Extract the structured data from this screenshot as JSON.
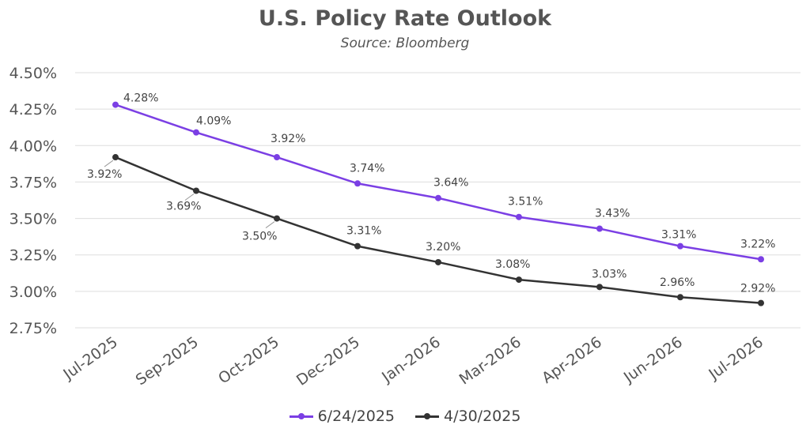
{
  "chart_data": {
    "type": "line",
    "title": "U.S. Policy Rate Outlook",
    "subtitle": "Source: Bloomberg",
    "categories": [
      "Jul-2025",
      "Sep-2025",
      "Oct-2025",
      "Dec-2025",
      "Jan-2026",
      "Mar-2026",
      "Apr-2026",
      "Jun-2026",
      "Jul-2026"
    ],
    "series": [
      {
        "name": "6/24/2025",
        "color": "#7b3fe4",
        "values": [
          4.28,
          4.09,
          3.92,
          3.74,
          3.64,
          3.51,
          3.43,
          3.31,
          3.22
        ],
        "labels": [
          "4.28%",
          "4.09%",
          "3.92%",
          "3.74%",
          "3.64%",
          "3.51%",
          "3.43%",
          "3.31%",
          "3.22%"
        ]
      },
      {
        "name": "4/30/2025",
        "color": "#333333",
        "values": [
          3.92,
          3.69,
          3.5,
          3.31,
          3.2,
          3.08,
          3.03,
          2.96,
          2.92
        ],
        "labels": [
          "3.92%",
          "3.69%",
          "3.50%",
          "3.31%",
          "3.20%",
          "3.08%",
          "3.03%",
          "2.96%",
          "2.92%"
        ]
      }
    ],
    "ylim": [
      2.75,
      4.5
    ],
    "yticks": [
      "2.75%",
      "3.00%",
      "3.25%",
      "3.50%",
      "3.75%",
      "4.00%",
      "4.25%",
      "4.50%"
    ],
    "grid": true,
    "legend": "bottom"
  }
}
